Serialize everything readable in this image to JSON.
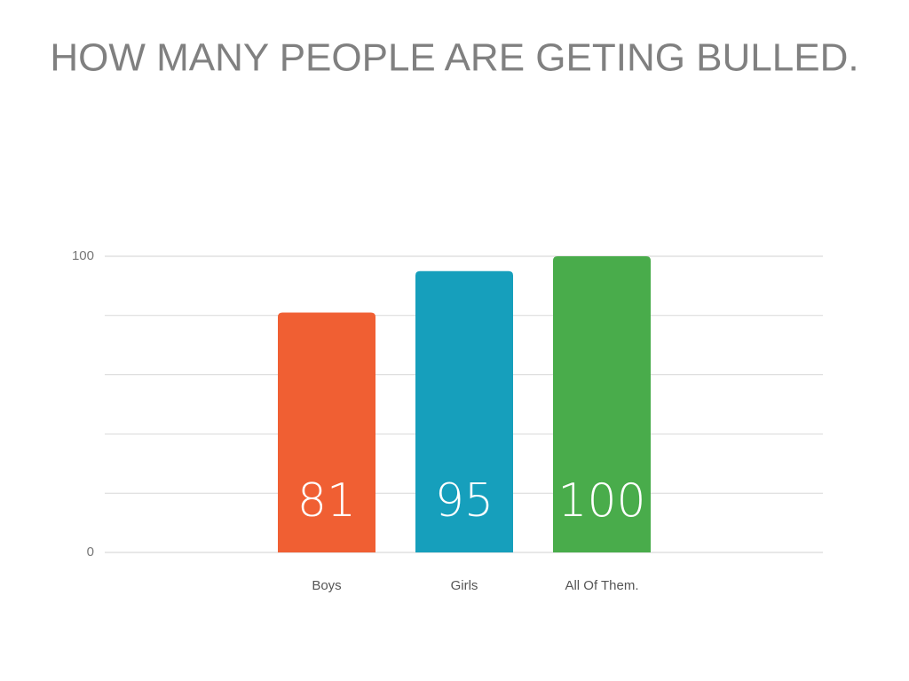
{
  "chart_data": {
    "type": "bar",
    "title": "HOW MANY PEOPLE ARE GETING BULLED.",
    "categories": [
      "Boys",
      "Girls",
      "All Of Them."
    ],
    "values": [
      81,
      95,
      100
    ],
    "colors": [
      "#f05f33",
      "#169fbc",
      "#49ac4b"
    ],
    "ylim": [
      0,
      100
    ],
    "yticks": [
      0,
      100
    ],
    "minor_yticks": [
      20,
      40,
      60,
      80
    ],
    "grid": true
  }
}
